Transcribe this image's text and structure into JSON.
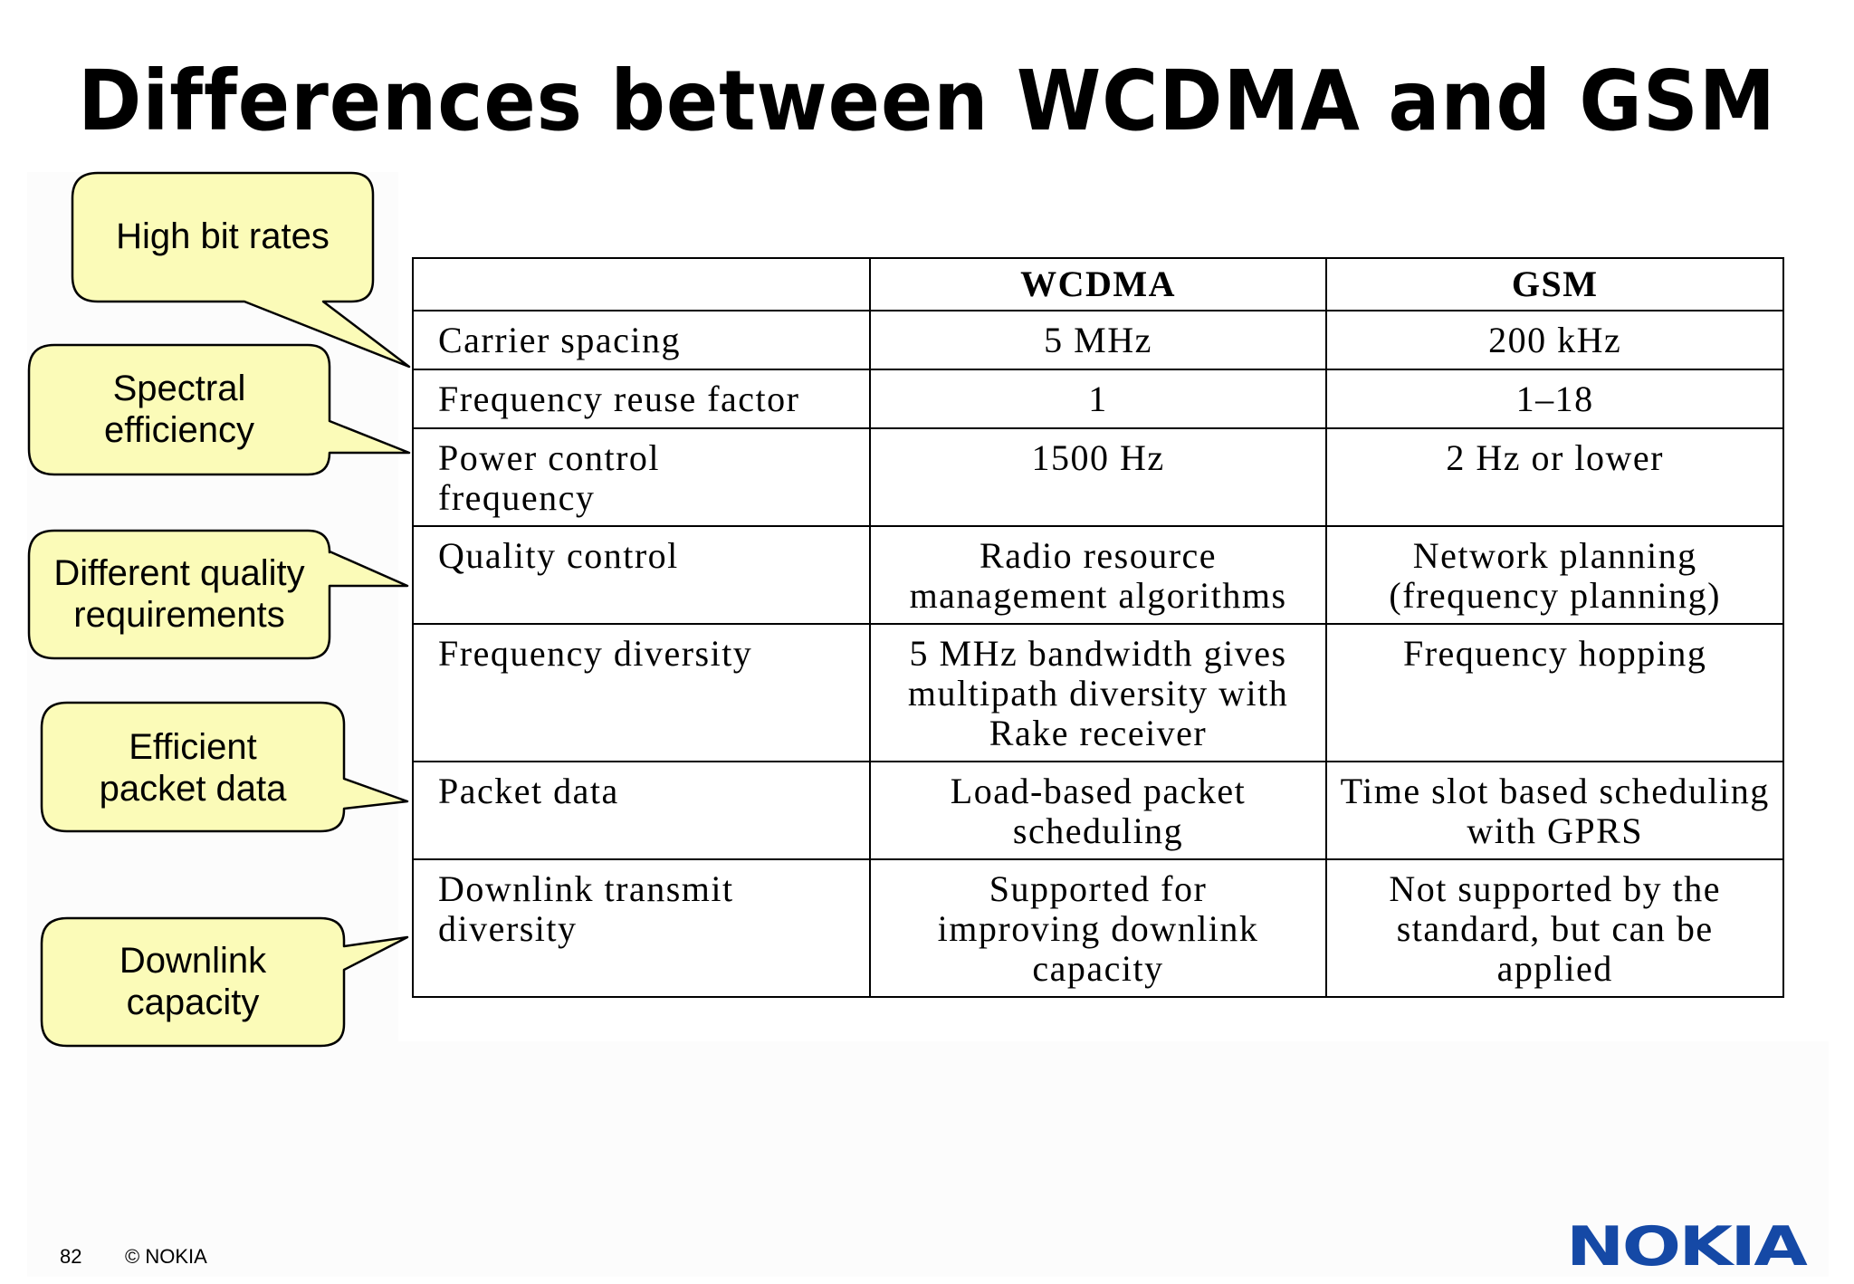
{
  "title": "Differences between WCDMA and GSM",
  "callouts": [
    {
      "lines": [
        "High bit rates"
      ]
    },
    {
      "lines": [
        "Spectral",
        "efficiency"
      ]
    },
    {
      "lines": [
        "Different quality",
        "requirements"
      ]
    },
    {
      "lines": [
        "Efficient",
        "packet data"
      ]
    },
    {
      "lines": [
        "Downlink",
        "capacity"
      ]
    }
  ],
  "table": {
    "headers": [
      "",
      "WCDMA",
      "GSM"
    ],
    "rows": [
      {
        "label": "Carrier spacing",
        "wcdma": "5 MHz",
        "gsm": "200 kHz"
      },
      {
        "label": "Frequency reuse factor",
        "wcdma": "1",
        "gsm": "1–18"
      },
      {
        "label": "Power control frequency",
        "wcdma": "1500 Hz",
        "gsm": "2 Hz or lower"
      },
      {
        "label": "Quality control",
        "wcdma": "Radio resource management algorithms",
        "gsm": "Network planning (frequency planning)"
      },
      {
        "label": "Frequency diversity",
        "wcdma": "5 MHz bandwidth gives multipath diversity with Rake receiver",
        "gsm": "Frequency hopping"
      },
      {
        "label": "Packet data",
        "wcdma": "Load-based packet scheduling",
        "gsm": "Time slot based scheduling with GPRS"
      },
      {
        "label": "Downlink transmit diversity",
        "wcdma": "Supported for improving downlink capacity",
        "gsm": "Not supported by the standard, but can be applied"
      }
    ]
  },
  "footer": {
    "page_number": "82",
    "copyright": "© NOKIA",
    "logo_text": "NOKIA",
    "logo_color": "#1549a6"
  },
  "colors": {
    "callout_fill": "#fbfbb8",
    "border": "#000000"
  }
}
